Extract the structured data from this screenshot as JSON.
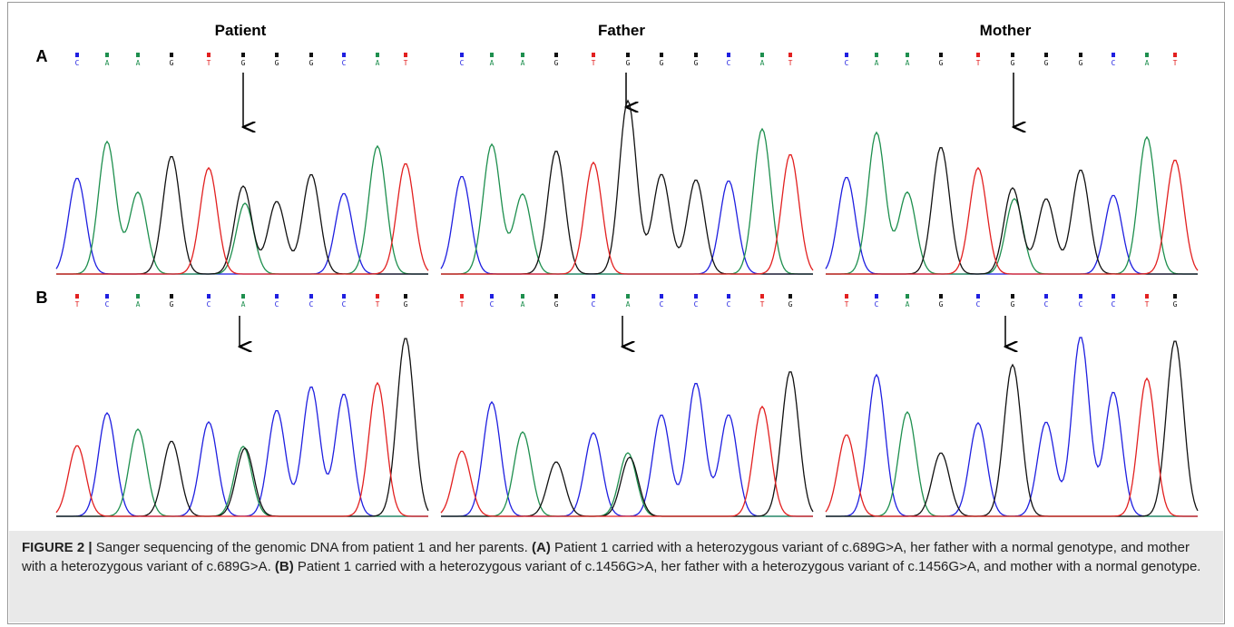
{
  "columns": [
    "Patient",
    "Father",
    "Mother"
  ],
  "rows": [
    {
      "label": "A",
      "sequences": [
        [
          "C",
          "A",
          "A",
          "G",
          "T",
          "G",
          "G",
          "G",
          "C",
          "A",
          "T"
        ],
        [
          "C",
          "A",
          "A",
          "G",
          "T",
          "G",
          "G",
          "G",
          "C",
          "A",
          "T"
        ],
        [
          "C",
          "A",
          "A",
          "G",
          "T",
          "G",
          "G",
          "G",
          "C",
          "A",
          "T"
        ]
      ]
    },
    {
      "label": "B",
      "sequences": [
        [
          "T",
          "C",
          "A",
          "G",
          "C",
          "A",
          "C",
          "C",
          "C",
          "T",
          "G"
        ],
        [
          "T",
          "C",
          "A",
          "G",
          "C",
          "A",
          "C",
          "C",
          "C",
          "T",
          "G"
        ],
        [
          "T",
          "C",
          "A",
          "G",
          "C",
          "G",
          "C",
          "C",
          "C",
          "T",
          "G"
        ]
      ]
    }
  ],
  "caption": [
    {
      "text": "FIGURE 2 |",
      "bold": true
    },
    {
      "text": " Sanger sequencing of the genomic DNA from patient 1 and her parents. ",
      "bold": false
    },
    {
      "text": "(A)",
      "bold": true
    },
    {
      "text": " Patient 1 carried with a heterozygous variant of c.689G>A, her father with a normal genotype, and mother with a heterozygous variant of c.689G>A. ",
      "bold": false
    },
    {
      "text": "(B)",
      "bold": true
    },
    {
      "text": " Patient 1 carried with a heterozygous variant of c.1456G>A, her father with a heterozygous variant of c.1456G>A, and mother with a normal genotype.",
      "bold": false
    }
  ]
}
